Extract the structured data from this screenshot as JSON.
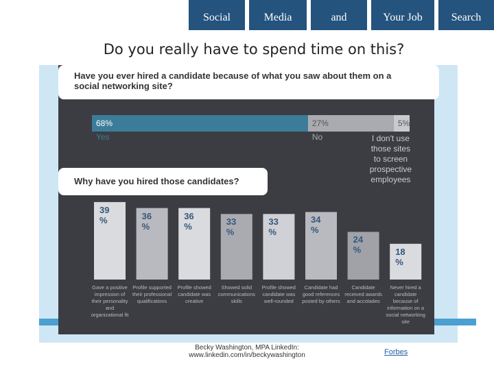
{
  "tabs": [
    "Social",
    "Media",
    "and",
    "Your Job",
    "Search"
  ],
  "title": "Do you really have to spend time on this?",
  "chart_data": [
    {
      "type": "stackedbar",
      "title": "Have you ever hired a candidate because of what you saw about them on a social networking site?",
      "series": [
        {
          "name": "Yes",
          "color": "#3b7d99",
          "values": [
            68
          ],
          "value_labels": [
            "68%"
          ]
        },
        {
          "name": "No",
          "color": "#a9abb0",
          "values": [
            27
          ],
          "value_labels": [
            "27%"
          ]
        },
        {
          "name": "I don't use those sites to screen prospective employees",
          "color": "#c9cacf",
          "values": [
            5
          ],
          "value_labels": [
            "5%"
          ]
        }
      ]
    },
    {
      "type": "bar",
      "title": "Why have you hired those candidates?",
      "categories": [
        "Gave a positive impression of their personality and organizational fit",
        "Profile supported their professional qualifications",
        "Profile showed candidate was creative",
        "Showed solid communications skills",
        "Profile showed candidate was well-rounded",
        "Candidate had good references posted by others",
        "Candidate received awards and accolades",
        "Never hired a candidate because of information on a social networking site"
      ],
      "values": [
        39,
        36,
        36,
        33,
        33,
        34,
        24,
        18
      ],
      "value_labels": [
        "39 %",
        "36 %",
        "36 %",
        "33 %",
        "33 %",
        "34 %",
        "24 %",
        "18 %"
      ],
      "colors": [
        "#dadbdf",
        "#b9bac0",
        "#dadbdf",
        "#a9abb1",
        "#d0d1d6",
        "#b9bac0",
        "#a0a2a8",
        "#dadbdf"
      ],
      "label_color": "#35587a"
    }
  ],
  "footer": {
    "credit": "Becky Washington, MPA LinkedIn: www.linkedin.com/in/beckywashington",
    "source": "Forbes"
  }
}
